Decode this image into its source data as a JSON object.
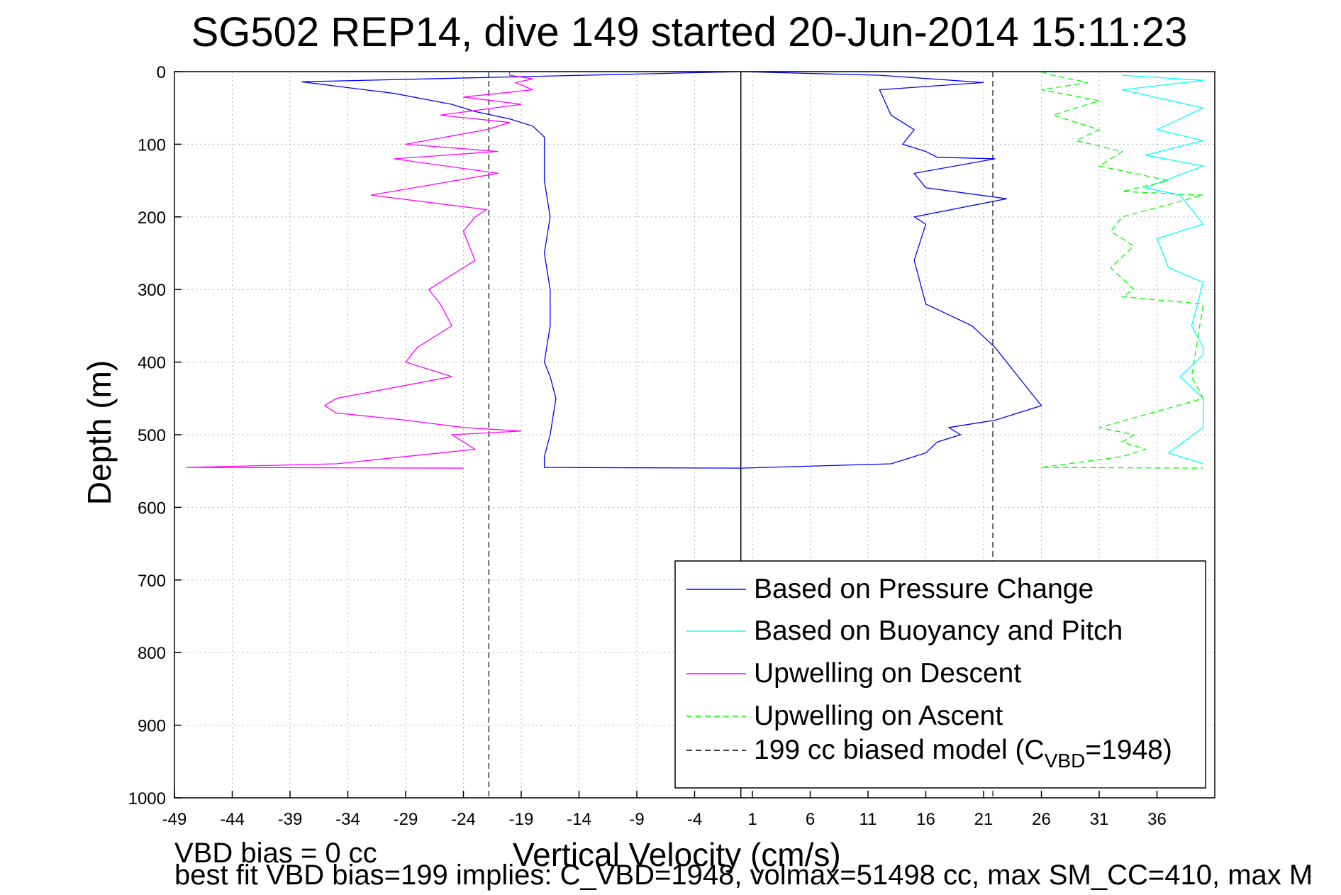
{
  "chart_data": {
    "type": "line",
    "title": "SG502 REP14, dive 149 started 20-Jun-2014 15:11:23",
    "xlabel": "Vertical Velocity (cm/s)",
    "ylabel": "Depth (m)",
    "xlim": [
      -49,
      41
    ],
    "ylim": [
      0,
      1000
    ],
    "y_reversed": true,
    "grid": true,
    "legend_position": "lower-right",
    "xticks": [
      -49,
      -44,
      -39,
      -34,
      -29,
      -24,
      -19,
      -14,
      -9,
      -4,
      1,
      6,
      11,
      16,
      21,
      26,
      31,
      36
    ],
    "yticks": [
      0,
      100,
      200,
      300,
      400,
      500,
      600,
      700,
      800,
      900,
      1000
    ],
    "model_lines": [
      -21.8,
      21.8
    ],
    "zero_line": 0,
    "legend": [
      {
        "label": "Based on Pressure Change",
        "color": "#0000ff",
        "dash": "solid"
      },
      {
        "label": "Based on Buoyancy and Pitch",
        "color": "#00ffff",
        "dash": "solid"
      },
      {
        "label": "Upwelling on Descent",
        "color": "#ff00ff",
        "dash": "solid"
      },
      {
        "label": "Upwelling on Ascent",
        "color": "#00ff00",
        "dash": "dashed"
      },
      {
        "label": "199 cc biased model (C",
        "sub": "VBD",
        "label_tail": "=1948)",
        "color": "#000000",
        "dash": "dashed"
      }
    ],
    "series": [
      {
        "key": "pressure_descent",
        "color": "#0000ff",
        "dash": "solid",
        "x": [
          0,
          -38,
          -35,
          -30,
          -25,
          -23,
          -20,
          -18,
          -17,
          -17,
          -16.5,
          -17,
          -16.5,
          -16.5,
          -17,
          -16.5,
          -16,
          -16.5,
          -17,
          -17,
          0
        ],
        "y": [
          0,
          14,
          20,
          30,
          45,
          55,
          65,
          75,
          90,
          150,
          200,
          250,
          300,
          350,
          400,
          420,
          450,
          500,
          530,
          545,
          546
        ]
      },
      {
        "key": "pressure_ascent",
        "color": "#0000ff",
        "dash": "solid",
        "x": [
          0,
          12,
          21,
          12,
          13,
          15,
          14,
          16,
          17,
          22,
          15,
          16,
          23,
          15,
          16,
          15,
          16,
          20,
          22,
          25,
          26,
          22,
          18,
          19,
          17,
          16,
          13,
          0
        ],
        "y": [
          0,
          5,
          15,
          25,
          60,
          80,
          100,
          110,
          118,
          120,
          140,
          160,
          175,
          200,
          210,
          260,
          320,
          350,
          380,
          440,
          460,
          480,
          490,
          500,
          510,
          525,
          540,
          546
        ]
      },
      {
        "key": "buoyancy_pitch",
        "color": "#00ffff",
        "dash": "solid",
        "x": [
          33,
          40,
          33,
          40,
          36,
          40,
          35,
          40,
          35,
          38,
          40,
          36,
          37,
          40,
          39,
          40,
          40,
          38,
          40,
          40,
          37,
          40
        ],
        "y": [
          5,
          12,
          25,
          50,
          80,
          95,
          115,
          130,
          160,
          170,
          210,
          230,
          270,
          290,
          350,
          380,
          390,
          420,
          450,
          490,
          525,
          540
        ]
      },
      {
        "key": "upwelling_descent",
        "color": "#ff00ff",
        "dash": "solid",
        "x": [
          -20,
          -20,
          -18,
          -19.5,
          -18,
          -24,
          -19,
          -26,
          -20,
          -22,
          -29,
          -21,
          -30,
          -21,
          -32,
          -22,
          -23,
          -24,
          -23,
          -27,
          -26,
          -25,
          -28,
          -29,
          -25,
          -35,
          -36,
          -35,
          -29,
          -24,
          -19,
          -25,
          -24,
          -23,
          -35,
          -48,
          -24
        ],
        "y": [
          0,
          5,
          10,
          15,
          25,
          35,
          45,
          60,
          70,
          80,
          100,
          110,
          120,
          140,
          170,
          190,
          200,
          220,
          260,
          300,
          320,
          350,
          380,
          400,
          420,
          450,
          460,
          470,
          480,
          490,
          495,
          500,
          510,
          520,
          540,
          545,
          546
        ]
      },
      {
        "key": "upwelling_ascent",
        "color": "#00ff00",
        "dash": "dashed",
        "x": [
          26,
          27,
          30,
          26,
          31,
          27,
          31,
          29,
          33,
          31,
          37,
          33,
          40,
          33,
          32,
          34,
          32,
          34,
          33,
          40,
          39,
          40,
          31,
          34,
          33,
          35,
          33,
          26,
          40
        ],
        "y": [
          0,
          5,
          15,
          25,
          40,
          60,
          80,
          95,
          110,
          130,
          150,
          165,
          170,
          200,
          220,
          240,
          270,
          300,
          310,
          320,
          420,
          450,
          490,
          500,
          510,
          520,
          530,
          545,
          546
        ]
      }
    ]
  },
  "footer": {
    "line1": "VBD bias = 0 cc",
    "line2": "best fit VBD bias=199 implies: C_VBD=1948, volmax=51498 cc, max SM_CC=410, max M"
  }
}
